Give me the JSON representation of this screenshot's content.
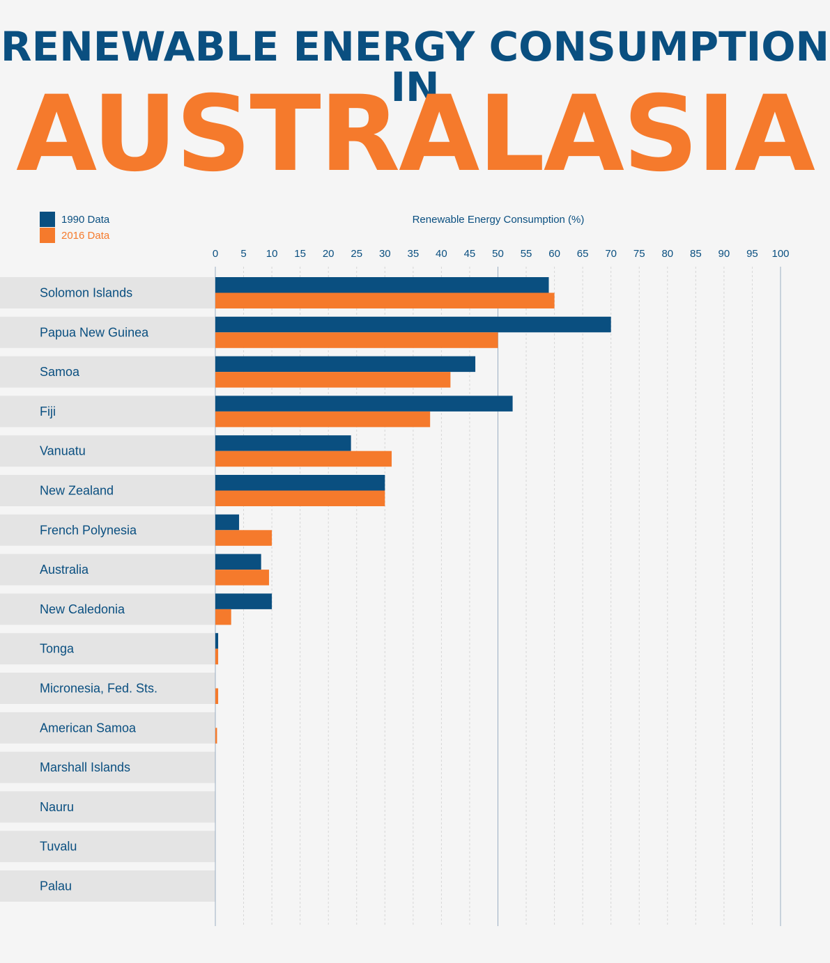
{
  "title": {
    "line1": "RENEWABLE ENERGY CONSUMPTION IN",
    "line2": "AUSTRALASIA"
  },
  "legend": {
    "position": "top-left",
    "items": [
      {
        "label": "1990 Data",
        "color": "#0a4f80"
      },
      {
        "label": "2016 Data",
        "color": "#f57a2c"
      }
    ]
  },
  "chart_data": {
    "type": "bar",
    "orientation": "horizontal",
    "xlabel": "Renewable Energy Consumption (%)",
    "xlim": [
      0,
      100
    ],
    "ticks": [
      0,
      5,
      10,
      15,
      20,
      25,
      30,
      35,
      40,
      45,
      50,
      55,
      60,
      65,
      70,
      75,
      80,
      85,
      90,
      95,
      100
    ],
    "grid": true,
    "categories": [
      "Solomon Islands",
      "Papua New Guinea",
      "Samoa",
      "Fiji",
      "Vanuatu",
      "New Zealand",
      "French Polynesia",
      "Australia",
      "New Caledonia",
      "Tonga",
      "Micronesia, Fed. Sts.",
      "American Samoa",
      "Marshall Islands",
      "Nauru",
      "Tuvalu",
      "Palau"
    ],
    "series": [
      {
        "name": "1990 Data",
        "color": "#0a4f80",
        "values": [
          59,
          70,
          46,
          52.6,
          24,
          30,
          4.2,
          8.1,
          10,
          0.5,
          0,
          0,
          0,
          0,
          0,
          0
        ]
      },
      {
        "name": "2016 Data",
        "color": "#f57a2c",
        "values": [
          60,
          50,
          41.6,
          38,
          31.2,
          30,
          10,
          9.5,
          2.8,
          0.5,
          0.5,
          0.3,
          0,
          0,
          0,
          0
        ]
      }
    ]
  }
}
